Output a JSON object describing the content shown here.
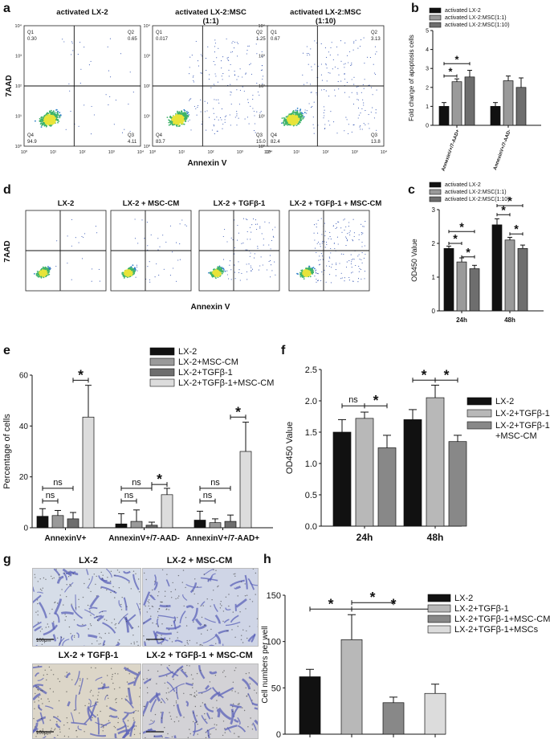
{
  "panel_labels": {
    "a": "a",
    "b": "b",
    "c": "c",
    "d": "d",
    "e": "e",
    "f": "f",
    "g": "g",
    "h": "h"
  },
  "panel_a": {
    "titles": [
      "activated LX-2",
      "activated LX-2:MSC\n(1:1)",
      "activated LX-2:MSC\n(1:10)"
    ],
    "ylabel": "7AAD",
    "xlabel": "Annexin V",
    "ticks": [
      "10⁰",
      "10¹",
      "10²",
      "10³",
      "10⁴"
    ],
    "quadrants": [
      {
        "Q1": "Q1",
        "Q1v": "0.30",
        "Q2": "Q2",
        "Q2v": "0.65",
        "Q3": "Q3",
        "Q3v": "4.11",
        "Q4": "Q4",
        "Q4v": "94.9"
      },
      {
        "Q1": "Q1",
        "Q1v": "0.017",
        "Q2": "Q2",
        "Q2v": "1.25",
        "Q3": "Q3",
        "Q3v": "15.0",
        "Q4": "Q4",
        "Q4v": "83.7"
      },
      {
        "Q1": "Q1",
        "Q1v": "0.67",
        "Q2": "Q2",
        "Q2v": "3.13",
        "Q3": "Q3",
        "Q3v": "13.8",
        "Q4": "Q4",
        "Q4v": "82.4"
      }
    ]
  },
  "panel_d": {
    "titles": [
      "LX-2",
      "LX-2 + MSC-CM",
      "LX-2 + TGFβ-1",
      "LX-2 + TGFβ-1 + MSC-CM"
    ],
    "ylabel": "7AAD",
    "xlabel": "Annexin V"
  },
  "panel_g": {
    "titles": [
      "LX-2",
      "LX-2 + MSC-CM",
      "LX-2 + TGFβ-1",
      "LX-2 + TGFβ-1 + MSC-CM"
    ],
    "scale": "100μm"
  },
  "chart_data": [
    {
      "panel": "b",
      "type": "bar",
      "ylabel": "Fold change of apoptosis cells",
      "categories": [
        "AnnexinV+/7-AAD+",
        "AnnexinV+/7-AAD-"
      ],
      "ylim": [
        0,
        5
      ],
      "yticks": [
        "0",
        "1",
        "2",
        "3",
        "4",
        "5"
      ],
      "series": [
        {
          "name": "activated LX-2",
          "values": [
            1.0,
            1.0
          ],
          "err": [
            0.2,
            0.2
          ],
          "color": "#111111"
        },
        {
          "name": "activated LX-2:MSC(1:1)",
          "values": [
            2.3,
            2.35
          ],
          "err": [
            0.15,
            0.25
          ],
          "color": "#9a9a9a"
        },
        {
          "name": "activated LX-2:MSC(1:10)",
          "values": [
            2.55,
            2.0
          ],
          "err": [
            0.35,
            0.5
          ],
          "color": "#6e6e6e"
        }
      ],
      "sig": [
        {
          "from": [
            0,
            0
          ],
          "to": [
            0,
            1
          ],
          "y": 2.6,
          "label": "*"
        },
        {
          "from": [
            0,
            0
          ],
          "to": [
            0,
            2
          ],
          "y": 3.25,
          "label": "*"
        }
      ]
    },
    {
      "panel": "c",
      "type": "bar",
      "ylabel": "OD450 Value",
      "categories": [
        "24h",
        "48h"
      ],
      "ylim": [
        0,
        3
      ],
      "yticks": [
        "0",
        "1",
        "2",
        "3"
      ],
      "series": [
        {
          "name": "activated LX-2",
          "values": [
            1.85,
            2.55
          ],
          "err": [
            0.07,
            0.18
          ],
          "color": "#111111"
        },
        {
          "name": "activated LX-2:MSC(1:1)",
          "values": [
            1.45,
            2.1
          ],
          "err": [
            0.12,
            0.08
          ],
          "color": "#9a9a9a"
        },
        {
          "name": "activated LX-2:MSC(1:10)",
          "values": [
            1.25,
            1.85
          ],
          "err": [
            0.1,
            0.1
          ],
          "color": "#6e6e6e"
        }
      ],
      "sig": [
        {
          "from": [
            0,
            0
          ],
          "to": [
            0,
            1
          ],
          "y": 2.0,
          "label": "*"
        },
        {
          "from": [
            0,
            0
          ],
          "to": [
            0,
            2
          ],
          "y": 2.35,
          "label": "*"
        },
        {
          "from": [
            0,
            1
          ],
          "to": [
            0,
            2
          ],
          "y": 1.6,
          "label": "*"
        },
        {
          "from": [
            1,
            0
          ],
          "to": [
            1,
            1
          ],
          "y": 2.85,
          "label": "*"
        },
        {
          "from": [
            1,
            0
          ],
          "to": [
            1,
            2
          ],
          "y": 3.12,
          "label": "*"
        },
        {
          "from": [
            1,
            1
          ],
          "to": [
            1,
            2
          ],
          "y": 2.28,
          "label": "*"
        }
      ]
    },
    {
      "panel": "e",
      "type": "bar",
      "ylabel": "Percentage of cells",
      "categories": [
        "AnnexinV+",
        "AnnexinV+/7-AAD-",
        "AnnexinV+/7-AAD+"
      ],
      "ylim": [
        0,
        60
      ],
      "yticks": [
        "0",
        "20",
        "40",
        "60"
      ],
      "series": [
        {
          "name": "LX-2",
          "values": [
            4.5,
            1.5,
            3.0
          ],
          "err": [
            3.0,
            4.0,
            3.5
          ],
          "color": "#111111"
        },
        {
          "name": "LX-2+MSC-CM",
          "values": [
            4.8,
            2.5,
            2.0
          ],
          "err": [
            2.0,
            4.5,
            1.5
          ],
          "color": "#9a9a9a"
        },
        {
          "name": "LX-2+TGFβ-1",
          "values": [
            3.5,
            1.0,
            2.5
          ],
          "err": [
            2.5,
            1.2,
            2.5
          ],
          "color": "#6e6e6e"
        },
        {
          "name": "LX-2+TGFβ-1+MSC-CM",
          "values": [
            43.5,
            13.0,
            30.0
          ],
          "err": [
            12.5,
            2.5,
            11.5
          ],
          "color": "#dcdcdc"
        }
      ],
      "sig": [
        {
          "group": 0,
          "from": 0,
          "to": 1,
          "y": 10.5,
          "label": "ns"
        },
        {
          "group": 0,
          "from": 0,
          "to": 2,
          "y": 15.5,
          "label": "ns"
        },
        {
          "group": 0,
          "from": 2,
          "to": 3,
          "y": 58.0,
          "label": "*"
        },
        {
          "group": 1,
          "from": 0,
          "to": 1,
          "y": 10.5,
          "label": "ns"
        },
        {
          "group": 1,
          "from": 0,
          "to": 2,
          "y": 15.5,
          "label": "ns"
        },
        {
          "group": 1,
          "from": 2,
          "to": 3,
          "y": 17.0,
          "label": "*"
        },
        {
          "group": 2,
          "from": 0,
          "to": 1,
          "y": 10.5,
          "label": "ns"
        },
        {
          "group": 2,
          "from": 0,
          "to": 2,
          "y": 15.5,
          "label": "ns"
        },
        {
          "group": 2,
          "from": 2,
          "to": 3,
          "y": 43.5,
          "label": "*"
        }
      ]
    },
    {
      "panel": "f",
      "type": "bar",
      "ylabel": "OD450 Value",
      "categories": [
        "24h",
        "48h"
      ],
      "ylim": [
        0.0,
        2.5
      ],
      "yticks": [
        "0.0",
        "0.5",
        "1.0",
        "1.5",
        "2.0",
        "2.5"
      ],
      "series": [
        {
          "name": "LX-2",
          "values": [
            1.5,
            1.7
          ],
          "err": [
            0.2,
            0.16
          ],
          "color": "#111111"
        },
        {
          "name": "LX-2+TGFβ-1",
          "values": [
            1.72,
            2.05
          ],
          "err": [
            0.1,
            0.2
          ],
          "color": "#b8b8b8"
        },
        {
          "name": "LX-2+TGFβ-1\n+MSC-CM",
          "values": [
            1.25,
            1.35
          ],
          "err": [
            0.2,
            0.1
          ],
          "color": "#888888"
        }
      ],
      "sig": [
        {
          "from": [
            0,
            0
          ],
          "to": [
            0,
            1
          ],
          "y": 1.92,
          "label": "ns"
        },
        {
          "from": [
            0,
            1
          ],
          "to": [
            0,
            2
          ],
          "y": 1.92,
          "label": "*"
        },
        {
          "from": [
            1,
            0
          ],
          "to": [
            1,
            1
          ],
          "y": 2.33,
          "label": "*"
        },
        {
          "from": [
            1,
            1
          ],
          "to": [
            1,
            2
          ],
          "y": 2.33,
          "label": "*"
        }
      ]
    },
    {
      "panel": "h",
      "type": "bar",
      "ylabel": "Cell numbers per well",
      "categories": [
        "LX-2",
        "LX-2+TGFβ-1",
        "LX-2+TGFβ-1+MSC-CM",
        "LX-2+TGFβ-1+MSCs"
      ],
      "ylim": [
        0,
        150
      ],
      "yticks": [
        "0",
        "50",
        "100",
        "150"
      ],
      "values": [
        62,
        102,
        34,
        44
      ],
      "err": [
        8,
        27,
        6,
        10
      ],
      "colors": [
        "#111111",
        "#b8b8b8",
        "#888888",
        "#dcdcdc"
      ],
      "sig": [
        {
          "from": 0,
          "to": 1,
          "y": 135,
          "label": "*"
        },
        {
          "from": 1,
          "to": 2,
          "y": 142,
          "label": "*"
        },
        {
          "from": 1,
          "to": 3,
          "y": 135,
          "label": "*"
        }
      ]
    }
  ]
}
